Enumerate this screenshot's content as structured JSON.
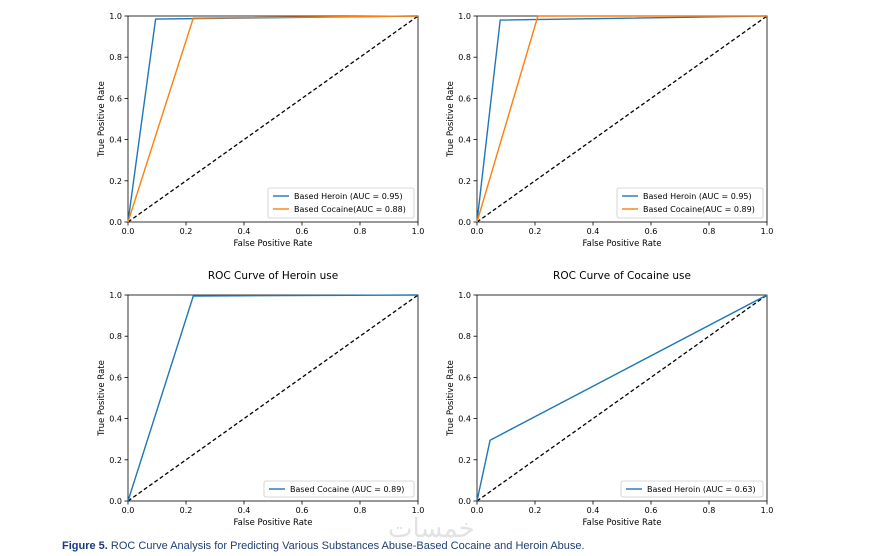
{
  "chart_data": [
    {
      "type": "line",
      "title": "",
      "xlabel": "False Positive Rate",
      "ylabel": "True Positive Rate",
      "xlim": [
        0,
        1
      ],
      "ylim": [
        0,
        1
      ],
      "xticks": [
        "0.0",
        "0.2",
        "0.4",
        "0.6",
        "0.8",
        "1.0"
      ],
      "yticks": [
        "0.0",
        "0.2",
        "0.4",
        "0.6",
        "0.8",
        "1.0"
      ],
      "legend_position": "lower-right",
      "series": [
        {
          "name": "Based Heroin (AUC = 0.95)",
          "color": "#1f77b4",
          "x": [
            0,
            0.095,
            1
          ],
          "y": [
            0,
            0.985,
            1
          ]
        },
        {
          "name": "Based Cocaine(AUC = 0.88)",
          "color": "#ff7f0e",
          "x": [
            0,
            0.225,
            1
          ],
          "y": [
            0,
            0.99,
            1
          ]
        }
      ],
      "reference_line": {
        "x": [
          0,
          1
        ],
        "y": [
          0,
          1
        ],
        "style": "dashed",
        "color": "#000000"
      }
    },
    {
      "type": "line",
      "title": "",
      "xlabel": "False Positive Rate",
      "ylabel": "True Positive Rate",
      "xlim": [
        0,
        1
      ],
      "ylim": [
        0,
        1
      ],
      "xticks": [
        "0.0",
        "0.2",
        "0.4",
        "0.6",
        "0.8",
        "1.0"
      ],
      "yticks": [
        "0.0",
        "0.2",
        "0.4",
        "0.6",
        "0.8",
        "1.0"
      ],
      "legend_position": "lower-right",
      "series": [
        {
          "name": "Based Heroin (AUC = 0.95)",
          "color": "#1f77b4",
          "x": [
            0,
            0.08,
            1
          ],
          "y": [
            0,
            0.98,
            1
          ]
        },
        {
          "name": "Based Cocaine(AUC = 0.89)",
          "color": "#ff7f0e",
          "x": [
            0,
            0.21,
            1
          ],
          "y": [
            0,
            1.0,
            1
          ]
        }
      ],
      "reference_line": {
        "x": [
          0,
          1
        ],
        "y": [
          0,
          1
        ],
        "style": "dashed",
        "color": "#000000"
      }
    },
    {
      "type": "line",
      "title": "ROC Curve of Heroin use",
      "xlabel": "False Positive Rate",
      "ylabel": "True Positive Rate",
      "xlim": [
        0,
        1
      ],
      "ylim": [
        0,
        1
      ],
      "xticks": [
        "0.0",
        "0.2",
        "0.4",
        "0.6",
        "0.8",
        "1.0"
      ],
      "yticks": [
        "0.0",
        "0.2",
        "0.4",
        "0.6",
        "0.8",
        "1.0"
      ],
      "legend_position": "lower-right",
      "series": [
        {
          "name": "Based Cocaine (AUC = 0.89)",
          "color": "#1f77b4",
          "x": [
            0,
            0.225,
            1
          ],
          "y": [
            0,
            0.995,
            1
          ]
        }
      ],
      "reference_line": {
        "x": [
          0,
          1
        ],
        "y": [
          0,
          1
        ],
        "style": "dashed",
        "color": "#000000"
      }
    },
    {
      "type": "line",
      "title": "ROC Curve of Cocaine use",
      "xlabel": "False Positive Rate",
      "ylabel": "True Positive Rate",
      "xlim": [
        0,
        1
      ],
      "ylim": [
        0,
        1
      ],
      "xticks": [
        "0.0",
        "0.2",
        "0.4",
        "0.6",
        "0.8",
        "1.0"
      ],
      "yticks": [
        "0.0",
        "0.2",
        "0.4",
        "0.6",
        "0.8",
        "1.0"
      ],
      "legend_position": "lower-right",
      "series": [
        {
          "name": "Based Heroin (AUC = 0.63)",
          "color": "#1f77b4",
          "x": [
            0,
            0.045,
            1
          ],
          "y": [
            0,
            0.295,
            1
          ]
        }
      ],
      "reference_line": {
        "x": [
          0,
          1
        ],
        "y": [
          0,
          1
        ],
        "style": "dashed",
        "color": "#000000"
      }
    }
  ],
  "caption": {
    "label": "Figure 5.",
    "text": "ROC Curve Analysis for Predicting Various Substances Abuse-Based Cocaine and Heroin Abuse."
  },
  "watermark": "خمسات"
}
